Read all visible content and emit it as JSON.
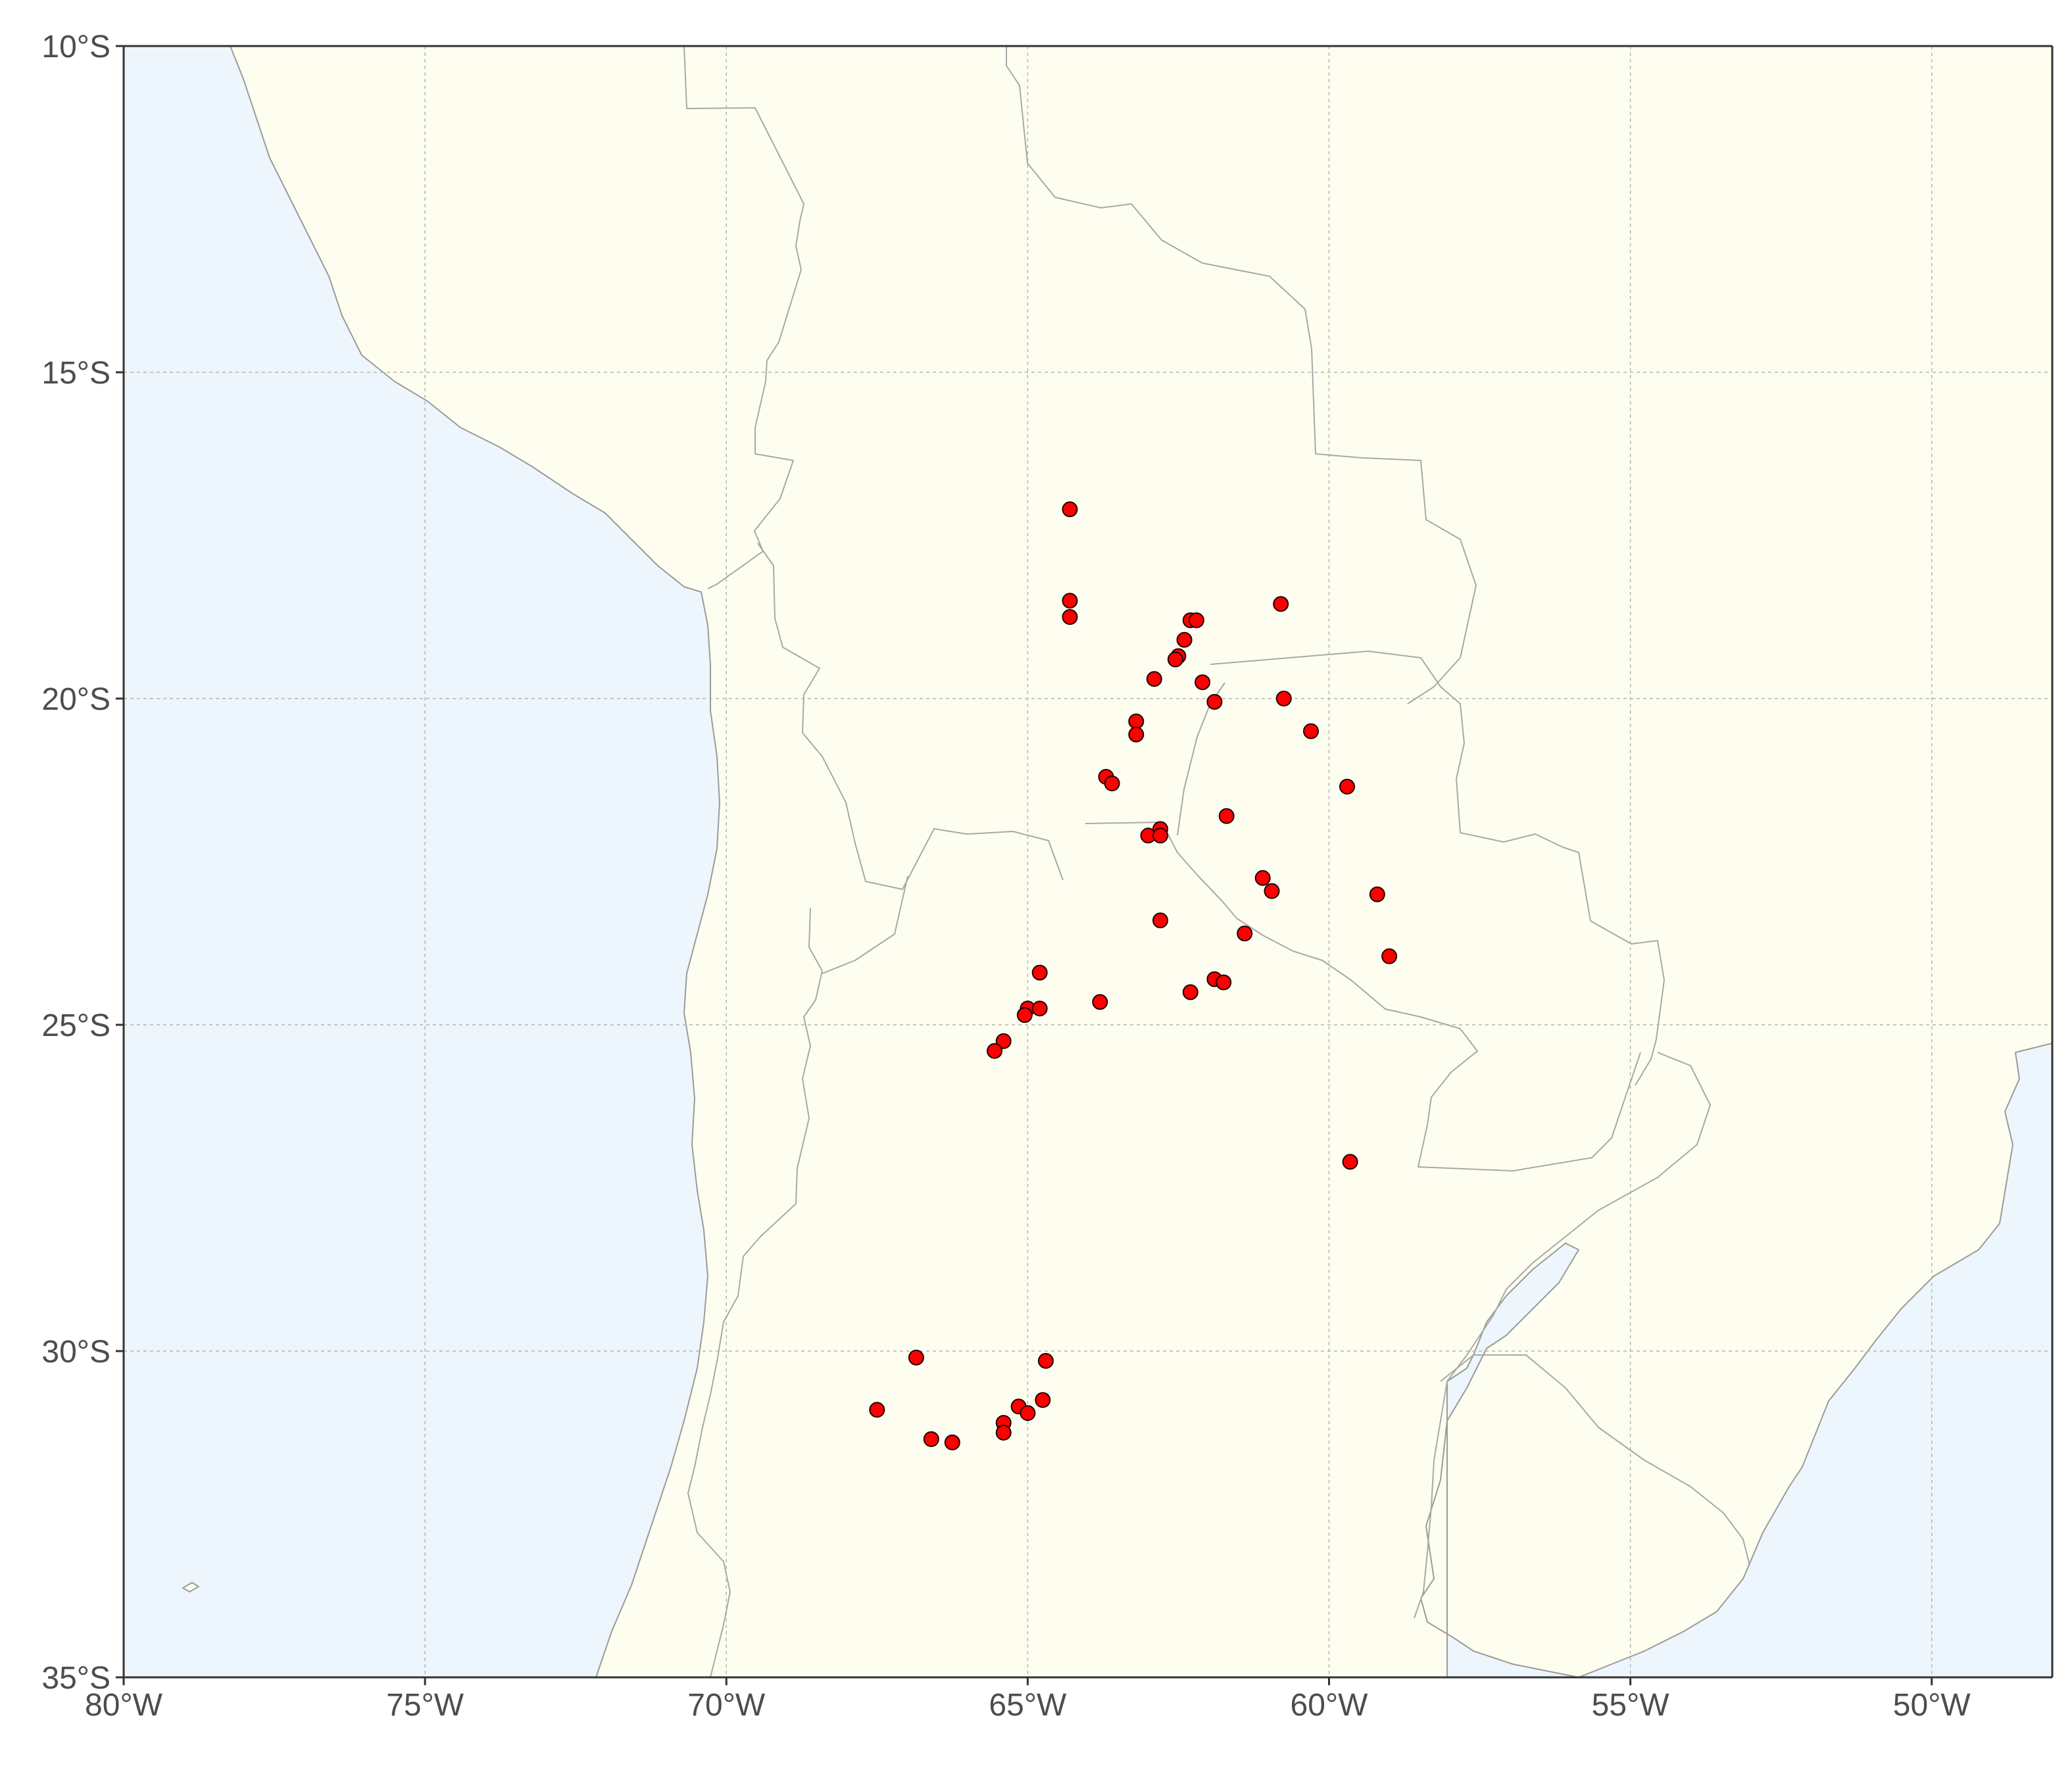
{
  "map": {
    "extent": {
      "lon": [
        -80,
        -48
      ],
      "lat": [
        -35,
        -10
      ]
    },
    "colors": {
      "ocean": "#eef6fd",
      "land": "#fefef0",
      "point": "#ff0000",
      "border": "#a8a8a8"
    },
    "grid": true,
    "x_ticks": [
      {
        "lon": -80,
        "label": "80°W"
      },
      {
        "lon": -75,
        "label": "75°W"
      },
      {
        "lon": -70,
        "label": "70°W"
      },
      {
        "lon": -65,
        "label": "65°W"
      },
      {
        "lon": -60,
        "label": "60°W"
      },
      {
        "lon": -55,
        "label": "55°W"
      },
      {
        "lon": -50,
        "label": "50°W"
      }
    ],
    "y_ticks": [
      {
        "lat": -10,
        "label": "10°S"
      },
      {
        "lat": -15,
        "label": "15°S"
      },
      {
        "lat": -20,
        "label": "20°S"
      },
      {
        "lat": -25,
        "label": "25°S"
      },
      {
        "lat": -30,
        "label": "30°S"
      },
      {
        "lat": -35,
        "label": "35°S"
      }
    ],
    "points": [
      [
        -64.3,
        -17.1
      ],
      [
        -64.3,
        -18.5
      ],
      [
        -64.3,
        -18.75
      ],
      [
        -60.8,
        -18.55
      ],
      [
        -62.3,
        -18.8
      ],
      [
        -62.2,
        -18.8
      ],
      [
        -62.4,
        -19.1
      ],
      [
        -62.5,
        -19.35
      ],
      [
        -62.55,
        -19.4
      ],
      [
        -62.9,
        -19.7
      ],
      [
        -62.1,
        -19.75
      ],
      [
        -61.9,
        -20.05
      ],
      [
        -60.75,
        -20.0
      ],
      [
        -60.3,
        -20.5
      ],
      [
        -63.2,
        -20.35
      ],
      [
        -63.2,
        -20.55
      ],
      [
        -63.7,
        -21.2
      ],
      [
        -63.6,
        -21.3
      ],
      [
        -59.7,
        -21.35
      ],
      [
        -61.7,
        -21.8
      ],
      [
        -63.0,
        -22.1
      ],
      [
        -62.8,
        -22.0
      ],
      [
        -62.8,
        -22.1
      ],
      [
        -61.1,
        -22.75
      ],
      [
        -60.95,
        -22.95
      ],
      [
        -59.2,
        -23.0
      ],
      [
        -62.8,
        -23.4
      ],
      [
        -61.4,
        -23.6
      ],
      [
        -59.0,
        -23.95
      ],
      [
        -64.8,
        -24.2
      ],
      [
        -61.9,
        -24.3
      ],
      [
        -61.75,
        -24.35
      ],
      [
        -62.3,
        -24.5
      ],
      [
        -63.8,
        -24.65
      ],
      [
        -65.0,
        -24.75
      ],
      [
        -64.8,
        -24.75
      ],
      [
        -65.05,
        -24.85
      ],
      [
        -65.4,
        -25.25
      ],
      [
        -65.55,
        -25.4
      ],
      [
        -59.65,
        -27.1
      ],
      [
        -66.85,
        -30.1
      ],
      [
        -64.7,
        -30.15
      ],
      [
        -67.5,
        -30.9
      ],
      [
        -64.75,
        -30.75
      ],
      [
        -65.15,
        -30.85
      ],
      [
        -65.0,
        -30.95
      ],
      [
        -65.4,
        -31.1
      ],
      [
        -66.6,
        -31.35
      ],
      [
        -66.25,
        -31.4
      ],
      [
        -65.4,
        -31.25
      ]
    ]
  }
}
